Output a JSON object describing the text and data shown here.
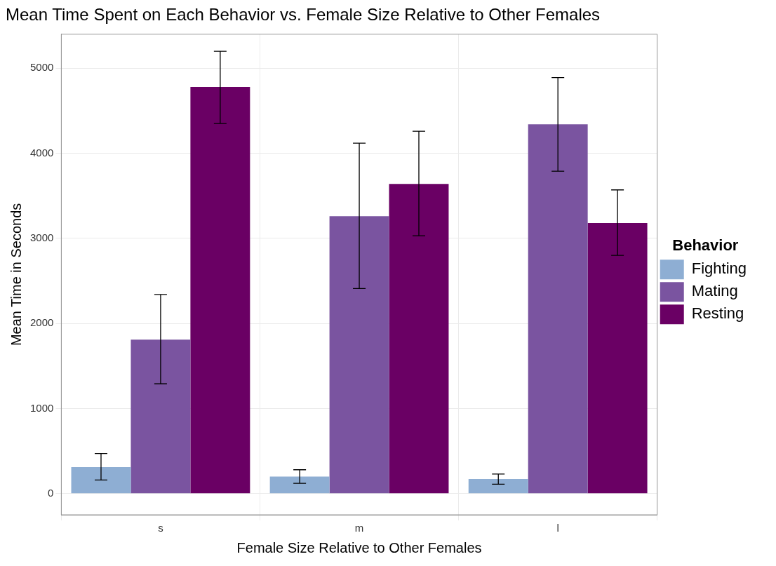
{
  "chart_data": {
    "type": "bar",
    "title": "Mean Time Spent on Each Behavior vs. Female Size Relative to Other Females",
    "xlabel": "Female Size Relative to Other Females",
    "ylabel": "Mean Time in Seconds",
    "legend_title": "Behavior",
    "categories": [
      "s",
      "m",
      "l"
    ],
    "series": [
      {
        "name": "Fighting",
        "color": "#8eaed3",
        "values": [
          310,
          200,
          170
        ],
        "errors": [
          [
            160,
            470
          ],
          [
            120,
            280
          ],
          [
            110,
            230
          ]
        ]
      },
      {
        "name": "Mating",
        "color": "#7a54a0",
        "values": [
          1810,
          3260,
          4340
        ],
        "errors": [
          [
            1290,
            2340
          ],
          [
            2410,
            4120
          ],
          [
            3790,
            4890
          ]
        ]
      },
      {
        "name": "Resting",
        "color": "#6a0064",
        "values": [
          4780,
          3640,
          3180
        ],
        "errors": [
          [
            4350,
            5200
          ],
          [
            3030,
            4260
          ],
          [
            2800,
            3570
          ]
        ]
      }
    ],
    "ylim": [
      -250,
      5400
    ],
    "yticks": [
      0,
      1000,
      2000,
      3000,
      4000,
      5000
    ],
    "grid": true,
    "legend": "right"
  }
}
